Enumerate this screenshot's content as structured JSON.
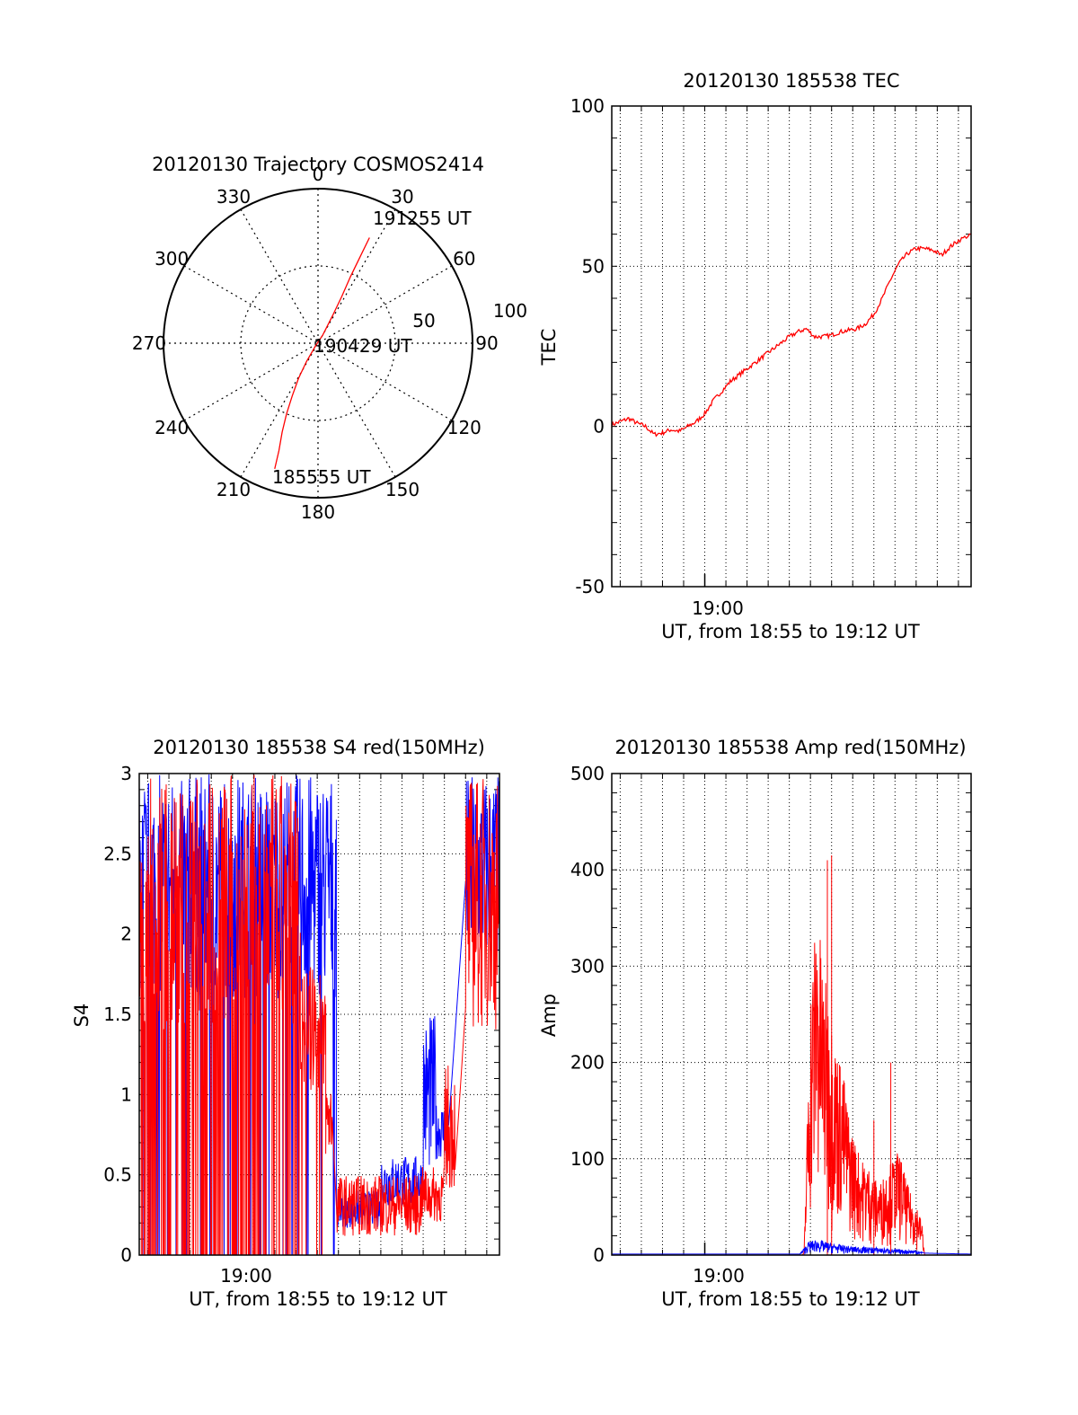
{
  "colors": {
    "red": "#ff0000",
    "blue": "#0000ff",
    "axis": "#000000",
    "grid": "#000000"
  },
  "chart_data": [
    {
      "id": "trajectory",
      "type": "polar",
      "title": "20120130 Trajectory COSMOS2414",
      "angle_labels": [
        "0",
        "30",
        "60",
        "90",
        "120",
        "150",
        "180",
        "210",
        "240",
        "270",
        "300",
        "330"
      ],
      "radius_labels": [
        "50",
        "100"
      ],
      "time_labels": {
        "end": "191255 UT",
        "mid": "190429 UT",
        "start": "185555 UT"
      },
      "track": [
        {
          "az": 199,
          "r": 86
        },
        {
          "az": 200,
          "r": 74
        },
        {
          "az": 202,
          "r": 62
        },
        {
          "az": 204,
          "r": 50
        },
        {
          "az": 206,
          "r": 38
        },
        {
          "az": 209,
          "r": 26
        },
        {
          "az": 212,
          "r": 14
        },
        {
          "az": 225,
          "r": 2
        },
        {
          "az": 30,
          "r": 6
        },
        {
          "az": 28,
          "r": 20
        },
        {
          "az": 27,
          "r": 34
        },
        {
          "az": 26,
          "r": 48
        },
        {
          "az": 26,
          "r": 62
        },
        {
          "az": 26,
          "r": 76
        }
      ],
      "series_color": "red"
    },
    {
      "id": "tec",
      "type": "line",
      "title": "20120130 185538 TEC",
      "ylabel": "TEC",
      "xlabel": "UT, from 18:55 to 19:12 UT",
      "x_tick_label": "19:00",
      "x_tick_minute": 60,
      "xlim_minutes": [
        55.6,
        72.6
      ],
      "ylim": [
        -50,
        100
      ],
      "yticks": [
        -50,
        0,
        50,
        100
      ],
      "grid": true,
      "series": [
        {
          "color": "red",
          "points": [
            [
              55.6,
              0.5
            ],
            [
              56.0,
              1.5
            ],
            [
              56.4,
              2.5
            ],
            [
              56.8,
              1.0
            ],
            [
              57.2,
              0.0
            ],
            [
              57.6,
              -2.5
            ],
            [
              58.0,
              -2.0
            ],
            [
              58.4,
              -1.0
            ],
            [
              58.8,
              -1.5
            ],
            [
              59.2,
              0.0
            ],
            [
              59.6,
              1.5
            ],
            [
              60.0,
              4.0
            ],
            [
              60.4,
              8.0
            ],
            [
              60.8,
              11.0
            ],
            [
              61.2,
              14.0
            ],
            [
              61.6,
              16.0
            ],
            [
              62.0,
              18.0
            ],
            [
              62.4,
              20.0
            ],
            [
              62.8,
              22.0
            ],
            [
              63.2,
              24.0
            ],
            [
              63.6,
              26.0
            ],
            [
              64.0,
              28.0
            ],
            [
              64.4,
              29.5
            ],
            [
              64.8,
              30.5
            ],
            [
              65.2,
              28.0
            ],
            [
              65.6,
              28.0
            ],
            [
              66.0,
              28.5
            ],
            [
              66.4,
              29.5
            ],
            [
              66.8,
              30.0
            ],
            [
              67.2,
              30.5
            ],
            [
              67.6,
              32.0
            ],
            [
              68.0,
              35.0
            ],
            [
              68.4,
              40.0
            ],
            [
              68.8,
              46.0
            ],
            [
              69.2,
              51.0
            ],
            [
              69.6,
              54.0
            ],
            [
              70.0,
              55.5
            ],
            [
              70.4,
              55.5
            ],
            [
              70.8,
              55.0
            ],
            [
              71.2,
              53.5
            ],
            [
              71.6,
              56.0
            ],
            [
              72.0,
              58.0
            ],
            [
              72.6,
              60.0
            ]
          ]
        }
      ]
    },
    {
      "id": "s4",
      "type": "line",
      "title": "20120130 185538 S4 red(150MHz)",
      "ylabel": "S4",
      "xlabel": "UT, from 18:55 to 19:12 UT",
      "x_tick_label": "19:00",
      "x_tick_minute": 60,
      "xlim_minutes": [
        55.6,
        72.6
      ],
      "ylim": [
        0,
        3
      ],
      "yticks": [
        0,
        0.5,
        1,
        1.5,
        2,
        2.5,
        3
      ],
      "ytick_labels": [
        "0",
        "0.5",
        "1",
        "1.5",
        "2",
        "2.5",
        "3"
      ],
      "grid": true,
      "series": [
        {
          "color": "blue",
          "segments": [
            {
              "x0": 55.6,
              "x1": 64.9,
              "lo": 1.6,
              "hi": 3.0,
              "spikes": 0.08
            },
            {
              "x0": 64.9,
              "x1": 67.0,
              "lo": 0.17,
              "hi": 0.4,
              "spikes": 0.0
            },
            {
              "x0": 67.0,
              "x1": 69.0,
              "lo": 0.3,
              "hi": 0.62,
              "spikes": 0.0
            },
            {
              "x0": 69.0,
              "x1": 69.6,
              "lo": 0.5,
              "hi": 1.5,
              "spikes": 0.0
            },
            {
              "x0": 69.6,
              "x1": 70.2,
              "lo": 0.6,
              "hi": 0.95,
              "spikes": 0.0
            },
            {
              "x0": 71.0,
              "x1": 72.6,
              "lo": 1.8,
              "hi": 3.0,
              "spikes": 0.0
            }
          ]
        },
        {
          "color": "red",
          "segments": [
            {
              "x0": 55.6,
              "x1": 63.2,
              "lo": 1.4,
              "hi": 3.0,
              "spikes": 0.3
            },
            {
              "x0": 63.2,
              "x1": 64.4,
              "lo": 1.0,
              "hi": 1.8,
              "spikes": 0.05
            },
            {
              "x0": 64.4,
              "x1": 64.7,
              "lo": 0.6,
              "hi": 1.1,
              "spikes": 0.0
            },
            {
              "x0": 64.9,
              "x1": 68.9,
              "lo": 0.12,
              "hi": 0.5,
              "spikes": 0.0
            },
            {
              "x0": 68.9,
              "x1": 70.0,
              "lo": 0.2,
              "hi": 0.55,
              "spikes": 0.0
            },
            {
              "x0": 70.0,
              "x1": 70.5,
              "lo": 0.4,
              "hi": 1.2,
              "spikes": 0.0
            },
            {
              "x0": 71.0,
              "x1": 72.6,
              "lo": 1.4,
              "hi": 3.0,
              "spikes": 0.0
            }
          ]
        }
      ]
    },
    {
      "id": "amp",
      "type": "line",
      "title": "20120130 185538 Amp red(150MHz)",
      "ylabel": "Amp",
      "xlabel": "UT, from 18:55 to 19:12 UT",
      "x_tick_label": "19:00",
      "x_tick_minute": 60,
      "xlim_minutes": [
        55.6,
        72.6
      ],
      "ylim": [
        0,
        500
      ],
      "yticks": [
        0,
        100,
        200,
        300,
        400,
        500
      ],
      "grid": true,
      "series": [
        {
          "color": "red",
          "envelope": [
            [
              55.6,
              0
            ],
            [
              64.6,
              0
            ],
            [
              64.7,
              2
            ],
            [
              64.8,
              100
            ],
            [
              65.0,
              280
            ],
            [
              65.3,
              370
            ],
            [
              65.6,
              300
            ],
            [
              65.9,
              260
            ],
            [
              66.2,
              220
            ],
            [
              66.5,
              200
            ],
            [
              66.8,
              150
            ],
            [
              67.1,
              120
            ],
            [
              67.4,
              100
            ],
            [
              67.7,
              95
            ],
            [
              68.0,
              80
            ],
            [
              68.3,
              75
            ],
            [
              68.6,
              90
            ],
            [
              68.9,
              100
            ],
            [
              69.2,
              110
            ],
            [
              69.5,
              80
            ],
            [
              69.8,
              60
            ],
            [
              70.1,
              50
            ],
            [
              70.3,
              30
            ],
            [
              70.4,
              0
            ],
            [
              72.6,
              0
            ]
          ],
          "peaks": [
            [
              65.8,
              410
            ],
            [
              66.0,
              415
            ],
            [
              68.0,
              140
            ],
            [
              68.8,
              200
            ]
          ]
        },
        {
          "color": "blue",
          "envelope": [
            [
              55.6,
              1
            ],
            [
              64.5,
              1
            ],
            [
              64.9,
              14
            ],
            [
              65.3,
              16
            ],
            [
              66.0,
              12
            ],
            [
              67.0,
              9
            ],
            [
              68.0,
              8
            ],
            [
              69.0,
              6
            ],
            [
              70.0,
              5
            ],
            [
              70.4,
              2
            ],
            [
              72.6,
              1
            ]
          ]
        }
      ]
    }
  ]
}
